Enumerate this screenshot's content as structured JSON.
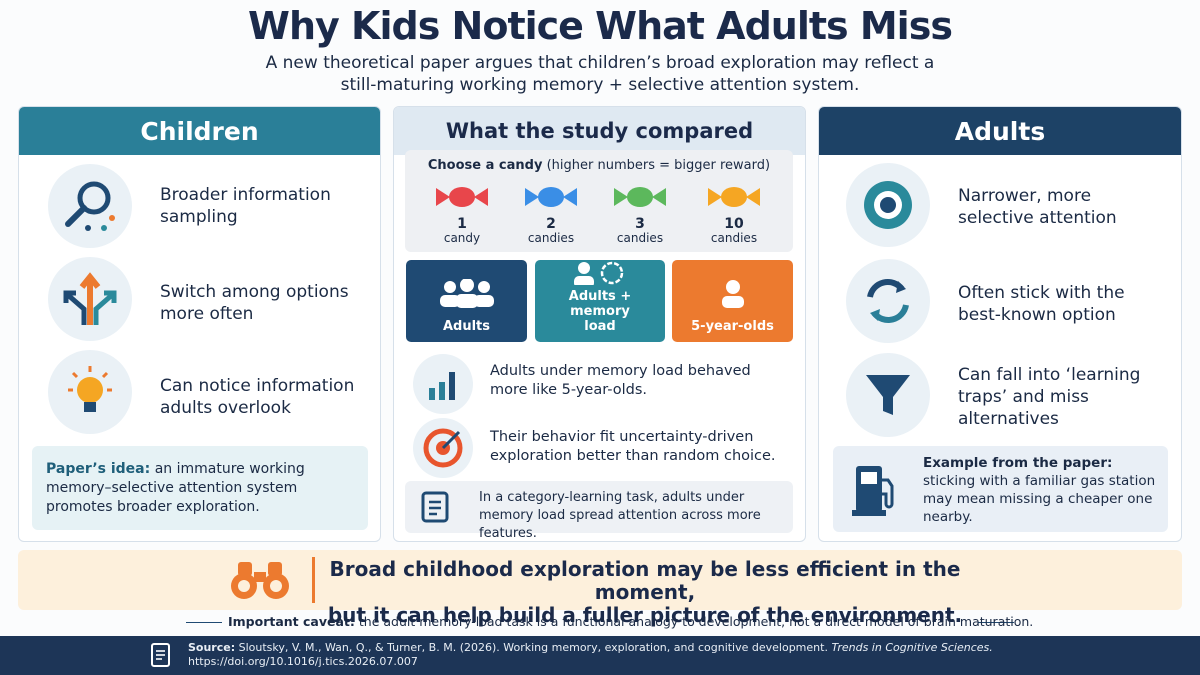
{
  "header": {
    "title": "Why Kids Notice What Adults Miss",
    "subtitle": "A new theoretical paper argues that children’s broad exploration may reflect a still-maturing working memory + selective attention system."
  },
  "children": {
    "title": "Children",
    "items": [
      "Broader information sampling",
      "Switch among options more often",
      "Can notice information adults overlook"
    ],
    "idea": {
      "label": "Paper’s idea:",
      "text": "an immature working memory–selective attention system promotes broader exploration."
    }
  },
  "study": {
    "title": "What the study compared",
    "candy": {
      "label": "Choose a candy",
      "note": "(higher numbers = bigger reward)",
      "options": [
        {
          "count": 1,
          "unit": "candy"
        },
        {
          "count": 2,
          "unit": "candies"
        },
        {
          "count": 3,
          "unit": "candies"
        },
        {
          "count": 10,
          "unit": "candies"
        }
      ]
    },
    "groups": [
      "Adults",
      "Adults + memory load",
      "5-year-olds"
    ],
    "findings": [
      "Adults under memory load behaved more like 5-year-olds.",
      "Their behavior fit uncertainty-driven exploration better than random choice."
    ],
    "task": "In a category-learning task, adults under memory load spread attention across more features."
  },
  "adults": {
    "title": "Adults",
    "items": [
      "Narrower, more selective attention",
      "Often stick with the best-known option",
      "Can fall into ‘learning traps’ and miss alternatives"
    ],
    "example": {
      "label": "Example from the paper:",
      "text": "sticking with a familiar gas station may mean missing a cheaper one nearby."
    }
  },
  "takeaway": {
    "lines": [
      "Broad childhood exploration may be less efficient in the moment,",
      "but it can help build a fuller picture of the environment."
    ]
  },
  "caveat": {
    "label": "Important caveat:",
    "text": "the adult memory-load task is a functional analogy to development, not a direct model of brain maturation."
  },
  "source": {
    "label": "Source:",
    "citation": "Sloutsky, V. M., Wan, Q., & Turner, B. M. (2026). Working memory, exploration, and cognitive development.",
    "journal": "Trends in Cognitive Sciences.",
    "doi": "https://doi.org/10.1016/j.tics.2026.07.007"
  }
}
